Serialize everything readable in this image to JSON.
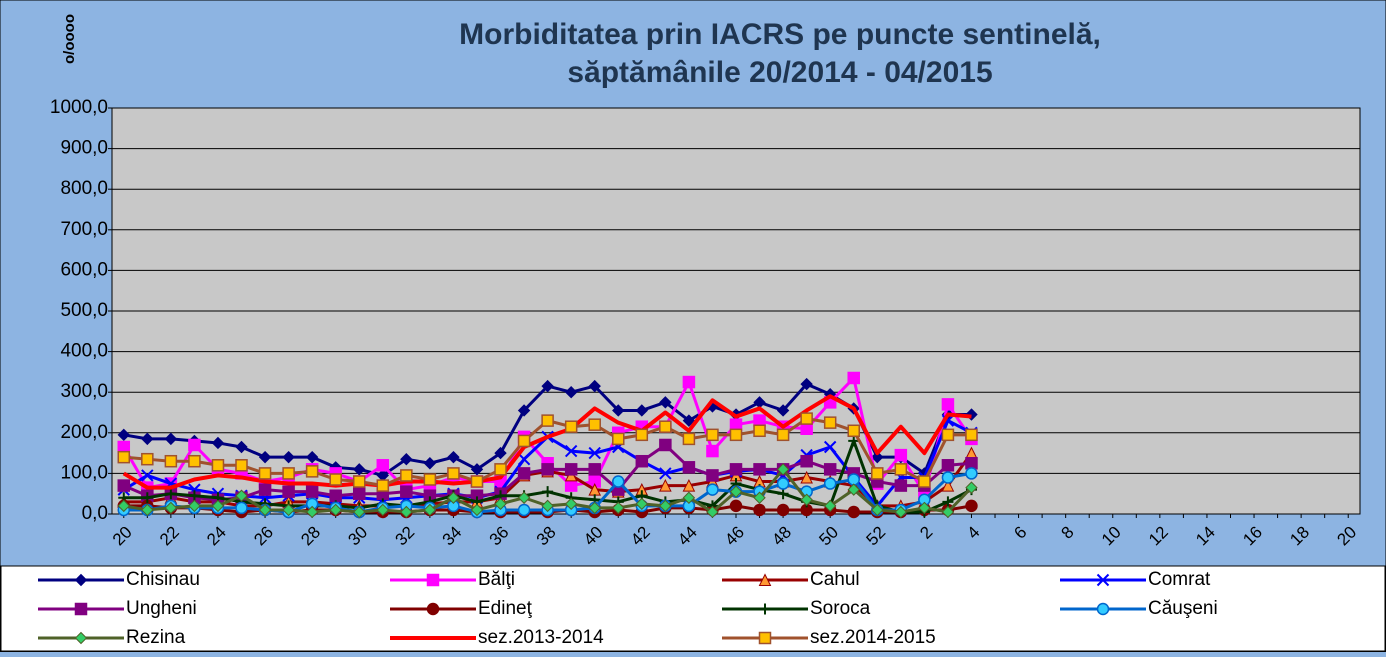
{
  "chart_data": {
    "type": "line",
    "title": [
      "Morbiditatea prin IACRS pe puncte sentinelă,",
      "săptămânile 20/2014 - 04/2015"
    ],
    "y_label": "o/oooo",
    "grid": true,
    "legend_position": "bottom",
    "ylim": [
      0,
      1000
    ],
    "yticks": [
      {
        "value": 0,
        "label": "0,0"
      },
      {
        "value": 100,
        "label": "100,0"
      },
      {
        "value": 200,
        "label": "200,0"
      },
      {
        "value": 300,
        "label": "300,0"
      },
      {
        "value": 400,
        "label": "400,0"
      },
      {
        "value": 500,
        "label": "500,0"
      },
      {
        "value": 600,
        "label": "600,0"
      },
      {
        "value": 700,
        "label": "700,0"
      },
      {
        "value": 800,
        "label": "800,0"
      },
      {
        "value": 900,
        "label": "900,0"
      },
      {
        "value": 1000,
        "label": "1000,0"
      }
    ],
    "categories": [
      "20",
      null,
      "22",
      null,
      "24",
      null,
      "26",
      null,
      "28",
      null,
      "30",
      null,
      "32",
      null,
      "34",
      null,
      "36",
      null,
      "38",
      null,
      "40",
      null,
      "42",
      null,
      "44",
      null,
      "46",
      null,
      "48",
      null,
      "50",
      null,
      "52",
      null,
      "2",
      null,
      "4",
      null,
      "6",
      null,
      "8",
      null,
      "10",
      null,
      "12",
      null,
      "14",
      null,
      "16",
      null,
      "18",
      null,
      "20"
    ],
    "series": [
      {
        "name": "Chisinau",
        "color": "#000080",
        "marker": "diamond",
        "marker_color": "#000080",
        "values": [
          195,
          185,
          185,
          180,
          175,
          165,
          140,
          140,
          140,
          115,
          110,
          95,
          135,
          125,
          140,
          110,
          150,
          255,
          315,
          300,
          315,
          255,
          255,
          275,
          230,
          265,
          245,
          275,
          255,
          320,
          295,
          260,
          140,
          140,
          100,
          245,
          245,
          null,
          null,
          null,
          null,
          null,
          null,
          null,
          null,
          null,
          null,
          null,
          null,
          null,
          null,
          null,
          null
        ]
      },
      {
        "name": "Bălţi",
        "color": "#ff00ff",
        "marker": "square",
        "marker_color": "#ff00ff",
        "values": [
          165,
          65,
          75,
          170,
          110,
          100,
          80,
          90,
          110,
          100,
          80,
          120,
          60,
          70,
          90,
          80,
          80,
          190,
          125,
          70,
          80,
          200,
          215,
          215,
          325,
          155,
          220,
          230,
          215,
          210,
          275,
          335,
          75,
          145,
          50,
          270,
          185,
          null,
          null,
          null,
          null,
          null,
          null,
          null,
          null,
          null,
          null,
          null,
          null,
          null,
          null,
          null,
          null
        ]
      },
      {
        "name": "Cahul",
        "color": "#990000",
        "marker": "triangle",
        "marker_color": "#ff9933",
        "values": [
          30,
          30,
          40,
          30,
          30,
          20,
          20,
          30,
          30,
          25,
          20,
          20,
          20,
          25,
          30,
          30,
          40,
          95,
          105,
          95,
          60,
          55,
          60,
          70,
          70,
          80,
          95,
          80,
          80,
          90,
          80,
          70,
          20,
          20,
          30,
          70,
          150,
          null,
          null,
          null,
          null,
          null,
          null,
          null,
          null,
          null,
          null,
          null,
          null,
          null,
          null,
          null,
          null
        ]
      },
      {
        "name": "Comrat",
        "color": "#0000ff",
        "marker": "x",
        "marker_color": "#0000ff",
        "values": [
          60,
          95,
          75,
          60,
          50,
          45,
          40,
          45,
          50,
          40,
          40,
          35,
          40,
          45,
          50,
          40,
          55,
          135,
          190,
          155,
          150,
          165,
          130,
          100,
          115,
          95,
          105,
          110,
          95,
          145,
          165,
          90,
          20,
          90,
          90,
          230,
          200,
          null,
          null,
          null,
          null,
          null,
          null,
          null,
          null,
          null,
          null,
          null,
          null,
          null,
          null,
          null,
          null
        ]
      },
      {
        "name": "Ungheni",
        "color": "#800080",
        "marker": "square",
        "marker_color": "#800080",
        "values": [
          70,
          45,
          50,
          40,
          35,
          40,
          60,
          55,
          55,
          45,
          50,
          50,
          55,
          45,
          45,
          45,
          50,
          100,
          110,
          110,
          110,
          60,
          130,
          170,
          115,
          95,
          110,
          110,
          110,
          130,
          110,
          100,
          80,
          70,
          70,
          120,
          125,
          null,
          null,
          null,
          null,
          null,
          null,
          null,
          null,
          null,
          null,
          null,
          null,
          null,
          null,
          null,
          null
        ]
      },
      {
        "name": "Edineţ",
        "color": "#800000",
        "marker": "circle",
        "marker_color": "#800000",
        "values": [
          20,
          20,
          15,
          15,
          10,
          5,
          10,
          5,
          10,
          10,
          5,
          5,
          5,
          10,
          10,
          5,
          5,
          5,
          5,
          10,
          5,
          10,
          5,
          15,
          15,
          10,
          20,
          10,
          10,
          10,
          10,
          5,
          5,
          5,
          10,
          10,
          20,
          null,
          null,
          null,
          null,
          null,
          null,
          null,
          null,
          null,
          null,
          null,
          null,
          null,
          null,
          null,
          null
        ]
      },
      {
        "name": "Soroca",
        "color": "#003300",
        "marker": "plus",
        "marker_color": "#003300",
        "values": [
          40,
          40,
          50,
          45,
          40,
          30,
          25,
          20,
          20,
          20,
          15,
          25,
          20,
          30,
          45,
          30,
          45,
          45,
          55,
          40,
          35,
          30,
          45,
          30,
          35,
          20,
          75,
          60,
          50,
          30,
          20,
          180,
          20,
          5,
          5,
          30,
          60,
          null,
          null,
          null,
          null,
          null,
          null,
          null,
          null,
          null,
          null,
          null,
          null,
          null,
          null,
          null,
          null
        ]
      },
      {
        "name": "Căuşeni",
        "color": "#0066cc",
        "marker": "circle",
        "marker_color": "#33ccff",
        "values": [
          10,
          10,
          20,
          15,
          15,
          15,
          10,
          5,
          25,
          15,
          5,
          15,
          20,
          15,
          20,
          5,
          10,
          10,
          10,
          10,
          15,
          80,
          20,
          20,
          20,
          60,
          55,
          55,
          75,
          55,
          75,
          85,
          10,
          10,
          35,
          90,
          100,
          null,
          null,
          null,
          null,
          null,
          null,
          null,
          null,
          null,
          null,
          null,
          null,
          null,
          null,
          null,
          null
        ]
      },
      {
        "name": "Rezina",
        "color": "#4f6228",
        "marker": "diamond",
        "marker_color": "#33cc66",
        "values": [
          20,
          10,
          15,
          20,
          20,
          45,
          10,
          10,
          5,
          10,
          5,
          10,
          5,
          10,
          40,
          10,
          25,
          40,
          20,
          25,
          15,
          15,
          25,
          20,
          40,
          5,
          55,
          40,
          110,
          35,
          20,
          60,
          10,
          5,
          15,
          5,
          65,
          null,
          null,
          null,
          null,
          null,
          null,
          null,
          null,
          null,
          null,
          null,
          null,
          null,
          null,
          null,
          null
        ]
      },
      {
        "name": "sez.2013-2014",
        "color": "#ff0000",
        "marker": "none",
        "marker_color": "#ff0000",
        "values": [
          100,
          65,
          65,
          85,
          95,
          90,
          80,
          75,
          75,
          70,
          75,
          70,
          80,
          80,
          75,
          80,
          90,
          165,
          190,
          210,
          260,
          225,
          205,
          250,
          205,
          280,
          240,
          260,
          215,
          255,
          290,
          260,
          150,
          215,
          150,
          245,
          240,
          null,
          null,
          null,
          null,
          null,
          null,
          null,
          null,
          null,
          null,
          null,
          null,
          null,
          null,
          null,
          null
        ]
      },
      {
        "name": "sez.2014-2015",
        "color": "#a0522d",
        "marker": "square",
        "marker_color": "#ffc000",
        "values": [
          140,
          135,
          130,
          130,
          120,
          120,
          100,
          100,
          105,
          85,
          80,
          70,
          95,
          85,
          100,
          80,
          110,
          180,
          230,
          215,
          220,
          185,
          195,
          215,
          185,
          195,
          195,
          205,
          195,
          235,
          225,
          205,
          100,
          110,
          80,
          195,
          195,
          null,
          null,
          null,
          null,
          null,
          null,
          null,
          null,
          null,
          null,
          null,
          null,
          null,
          null,
          null,
          null
        ]
      }
    ]
  }
}
